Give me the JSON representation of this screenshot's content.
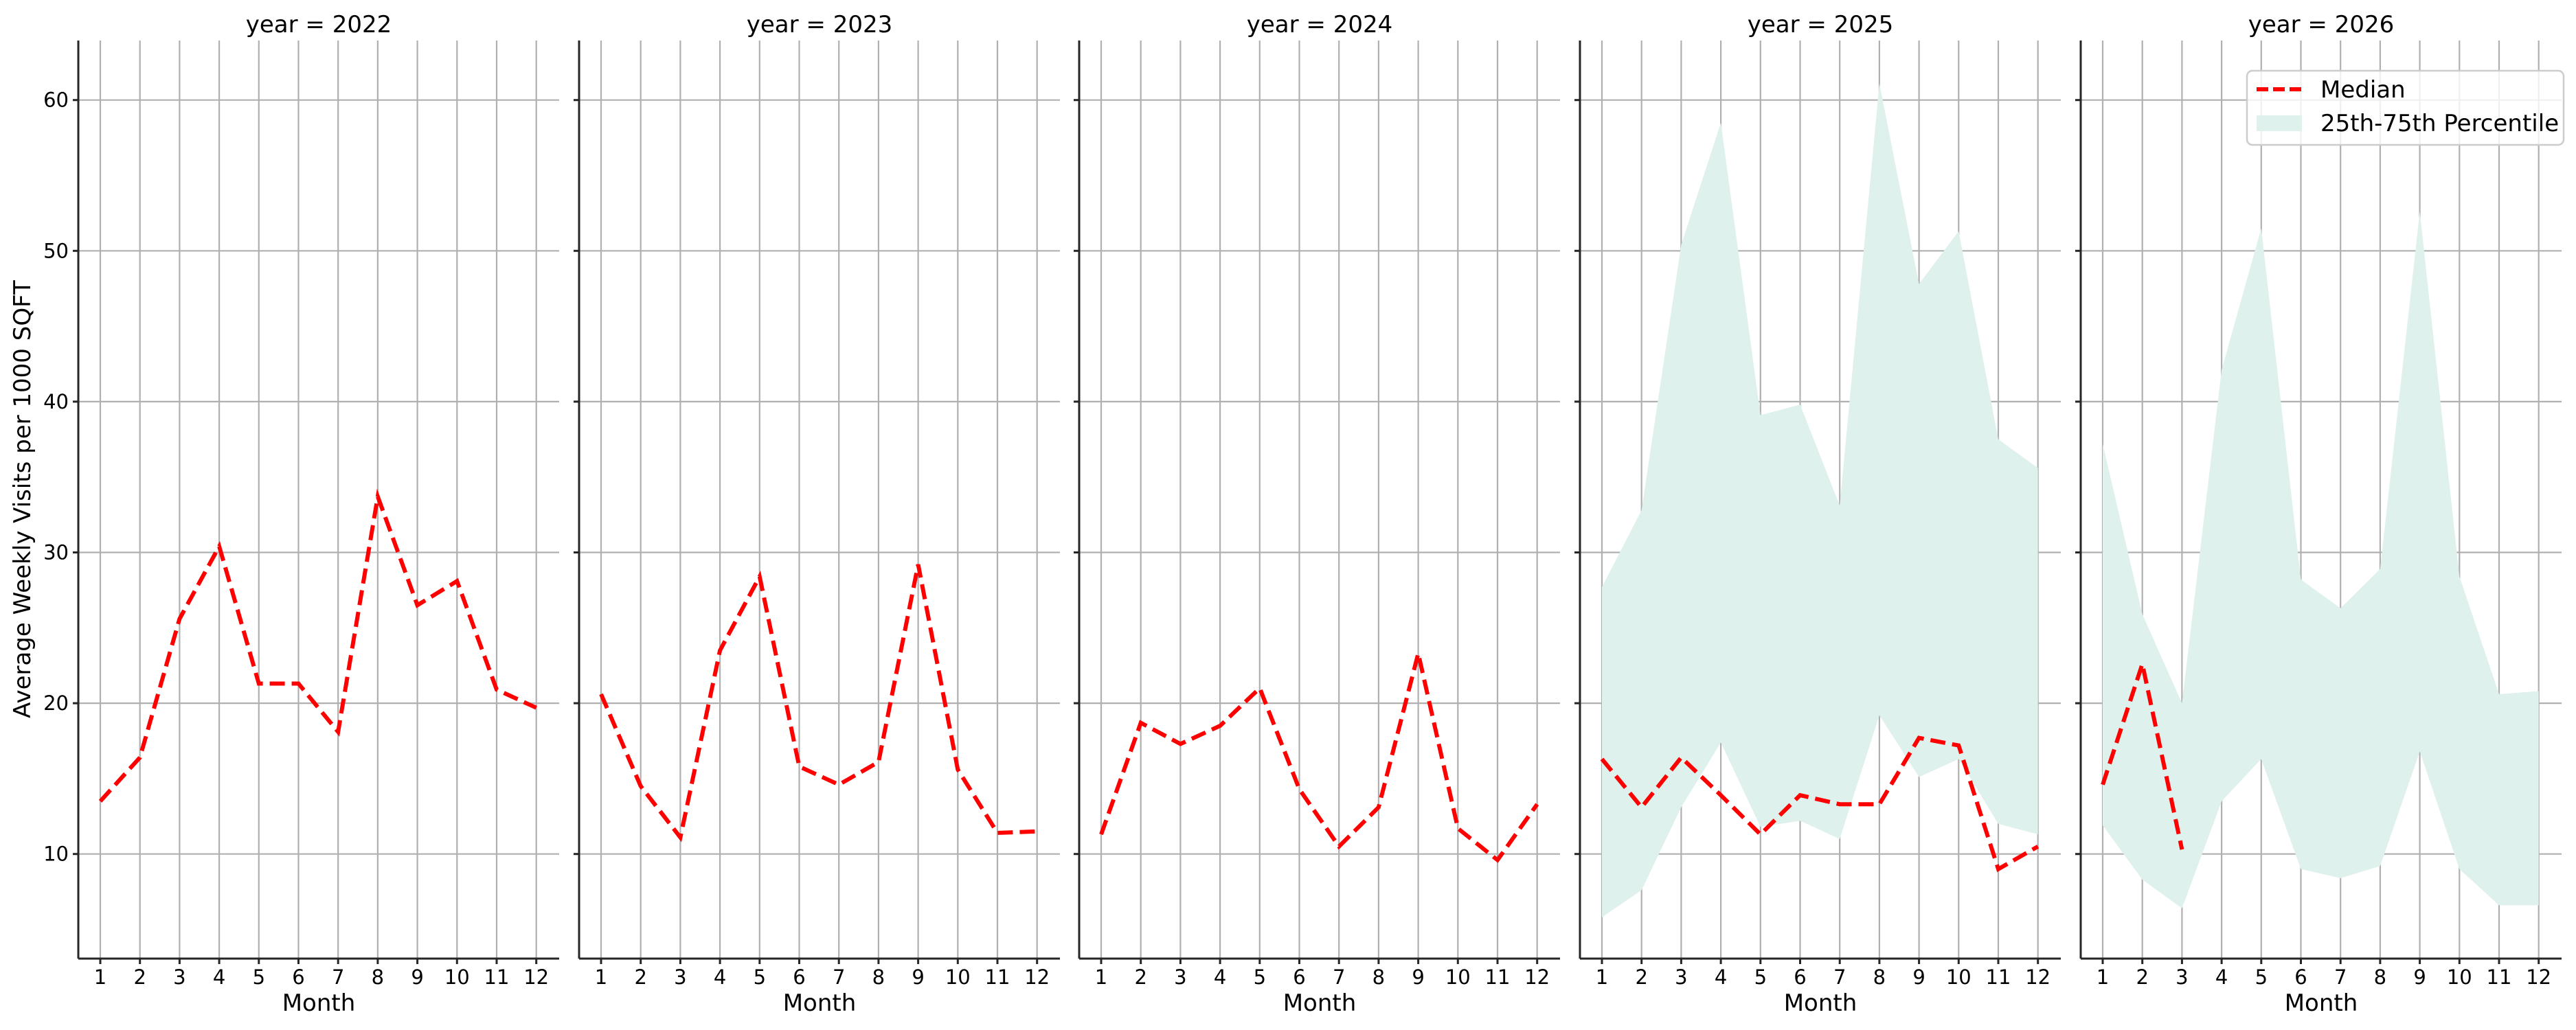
{
  "figure": {
    "ylabel": "Average Weekly Visits per 1000 SQFT",
    "xlabel": "Month",
    "yticks": [
      10,
      20,
      30,
      40,
      50,
      60
    ],
    "xticks": [
      1,
      2,
      3,
      4,
      5,
      6,
      7,
      8,
      9,
      10,
      11,
      12
    ],
    "panel_titles": [
      "year = 2022",
      "year = 2023",
      "year = 2024",
      "year = 2025",
      "year = 2026"
    ],
    "legend": {
      "median_label": "Median",
      "band_label": "25th-75th Percentile"
    },
    "colors": {
      "median": "#ff0000",
      "band": "#dff1ec",
      "grid": "#b0b0b0",
      "spine": "#262626"
    }
  },
  "chart_data": {
    "type": "line",
    "title": "",
    "xlabel": "Month",
    "ylabel": "Average Weekly Visits per 1000 SQFT",
    "ylim": [
      3.0,
      64.0
    ],
    "xlim": [
      0.45,
      12.6
    ],
    "grid": true,
    "legend_position": "upper right (year = 2026 panel)",
    "facet": "year",
    "categories": [
      1,
      2,
      3,
      4,
      5,
      6,
      7,
      8,
      9,
      10,
      11,
      12
    ],
    "panels": [
      {
        "title": "year = 2022",
        "series": [
          {
            "name": "Median",
            "type": "line",
            "style": "dashed",
            "x": [
              1,
              2,
              3,
              4,
              5,
              6,
              7,
              8,
              9,
              10,
              11,
              12
            ],
            "values": [
              13.5,
              16.4,
              25.6,
              30.4,
              21.3,
              21.3,
              18.1,
              33.7,
              26.5,
              28.1,
              20.9,
              19.7
            ]
          }
        ]
      },
      {
        "title": "year = 2023",
        "series": [
          {
            "name": "Median",
            "type": "line",
            "style": "dashed",
            "x": [
              1,
              2,
              3,
              4,
              5,
              6,
              7,
              8,
              9,
              10,
              11,
              12
            ],
            "values": [
              20.6,
              14.5,
              11.1,
              23.5,
              28.4,
              15.8,
              14.6,
              16.1,
              29.2,
              15.6,
              11.4,
              11.5
            ]
          }
        ]
      },
      {
        "title": "year = 2024",
        "series": [
          {
            "name": "Median",
            "type": "line",
            "style": "dashed",
            "x": [
              1,
              2,
              3,
              4,
              5,
              6,
              7,
              8,
              9,
              10,
              11,
              12
            ],
            "values": [
              11.3,
              18.7,
              17.3,
              18.5,
              21.0,
              14.3,
              10.5,
              13.1,
              23.3,
              11.7,
              9.6,
              13.3
            ]
          }
        ]
      },
      {
        "title": "year = 2025",
        "series": [
          {
            "name": "25th-75th Percentile",
            "type": "area_band",
            "x": [
              1,
              2,
              3,
              4,
              5,
              6,
              7,
              8,
              9,
              10,
              11,
              12
            ],
            "lower": [
              5.8,
              7.6,
              13.1,
              17.4,
              11.8,
              12.2,
              11.0,
              19.2,
              15.1,
              16.3,
              12.0,
              11.3
            ],
            "upper": [
              27.7,
              32.8,
              50.4,
              58.5,
              39.1,
              39.8,
              33.1,
              61.1,
              47.8,
              51.3,
              37.5,
              35.6
            ]
          },
          {
            "name": "Median",
            "type": "line",
            "style": "dashed",
            "x": [
              1,
              2,
              3,
              4,
              5,
              6,
              7,
              8,
              9,
              10,
              11,
              12
            ],
            "values": [
              16.3,
              13.1,
              16.4,
              13.9,
              11.3,
              13.9,
              13.3,
              13.3,
              17.7,
              17.2,
              9.0,
              10.5
            ]
          }
        ]
      },
      {
        "title": "year = 2026",
        "series": [
          {
            "name": "25th-75th Percentile",
            "type": "area_band",
            "x": [
              1,
              2,
              3,
              4,
              5,
              6,
              7,
              8,
              9,
              10,
              11,
              12
            ],
            "lower": [
              11.9,
              8.3,
              6.4,
              13.5,
              16.3,
              9.0,
              8.4,
              9.2,
              16.8,
              9.0,
              6.6,
              6.6
            ],
            "upper": [
              37.2,
              25.9,
              20.0,
              42.1,
              51.5,
              28.2,
              26.3,
              28.9,
              52.6,
              28.4,
              20.6,
              20.8
            ]
          },
          {
            "name": "Median",
            "type": "line",
            "style": "dashed",
            "x": [
              1,
              2,
              3
            ],
            "values": [
              14.6,
              22.6,
              10.3
            ]
          }
        ]
      }
    ],
    "legend": [
      "Median",
      "25th-75th Percentile"
    ]
  }
}
